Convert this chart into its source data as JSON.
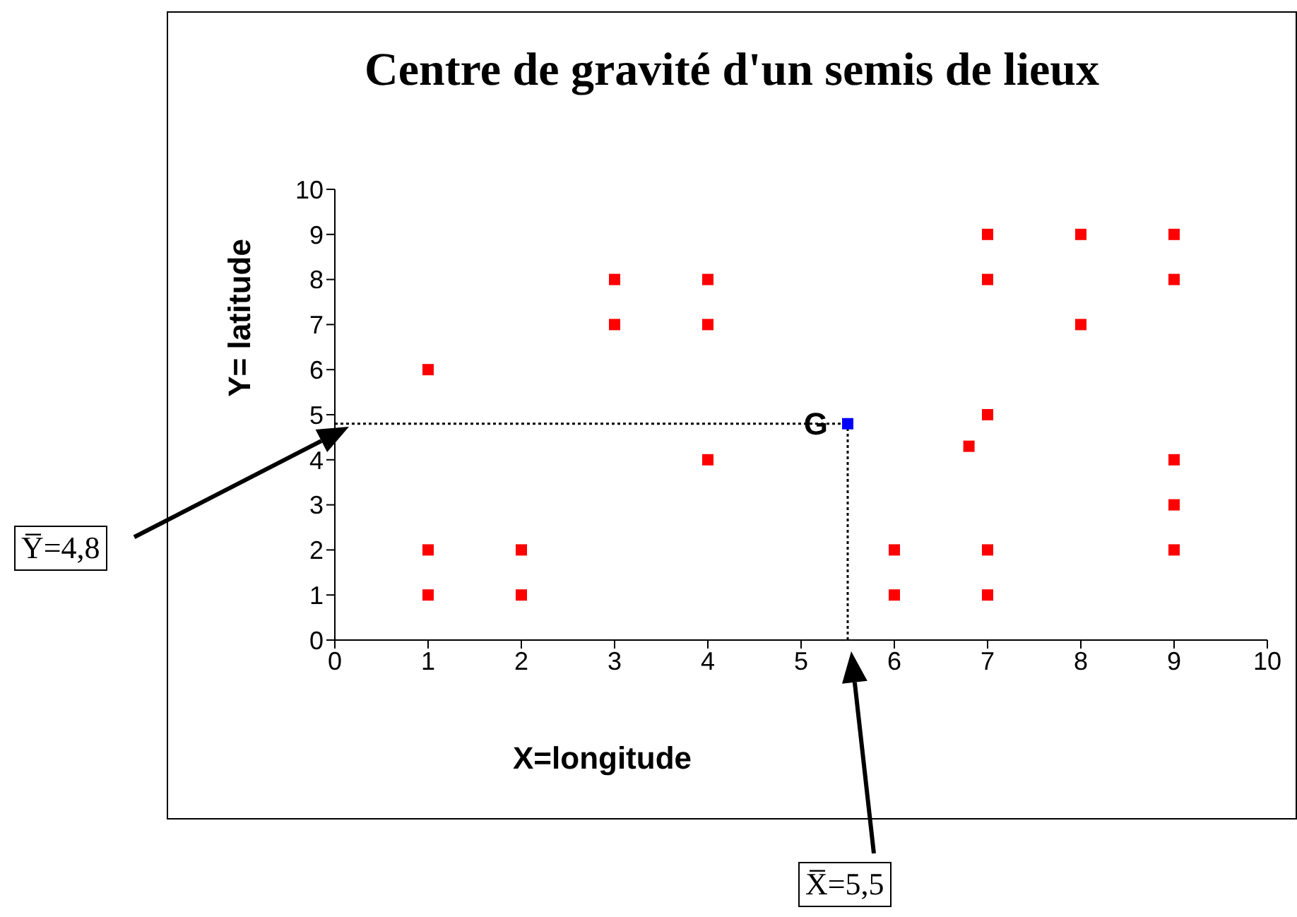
{
  "chart_data": {
    "type": "scatter",
    "title": "Centre de gravité d'un semis de lieux",
    "xlabel": "X=longitude",
    "ylabel": "Y= latitude",
    "series": [
      {
        "color": "#ff0000",
        "x": [
          1,
          1,
          1,
          2,
          2,
          3,
          3,
          4,
          4,
          4,
          6,
          6,
          6.8,
          7,
          7,
          7,
          7,
          7,
          8,
          8,
          9,
          9,
          9,
          9,
          9
        ],
        "values": [
          6,
          2,
          1,
          2,
          1,
          8,
          7,
          8,
          7,
          4,
          2,
          1,
          4.3,
          9,
          8,
          5,
          2,
          1,
          9,
          7,
          9,
          8,
          4,
          3,
          2
        ]
      },
      {
        "color": "#0000ff",
        "x": [
          5.5
        ],
        "values": [
          4.8
        ]
      }
    ],
    "annotations": [
      {
        "text": "G",
        "x": 5.5,
        "y": 4.8
      },
      "Y̅=4,8",
      "X̅=5,5"
    ],
    "ref_lines": [
      {
        "axis": "x",
        "value": 5.5,
        "line_style": "dotted"
      },
      {
        "axis": "y",
        "value": 4.8,
        "line_style": "dotted"
      }
    ],
    "xlim": [
      0,
      10
    ],
    "xticks": [
      0,
      1,
      2,
      3,
      4,
      5,
      6,
      7,
      8,
      9,
      10
    ],
    "ylim": [
      0,
      10
    ],
    "yticks": [
      0,
      1,
      2,
      3,
      4,
      5,
      6,
      7,
      8,
      9,
      10
    ],
    "marker": "square",
    "grid": false,
    "legend": false
  }
}
